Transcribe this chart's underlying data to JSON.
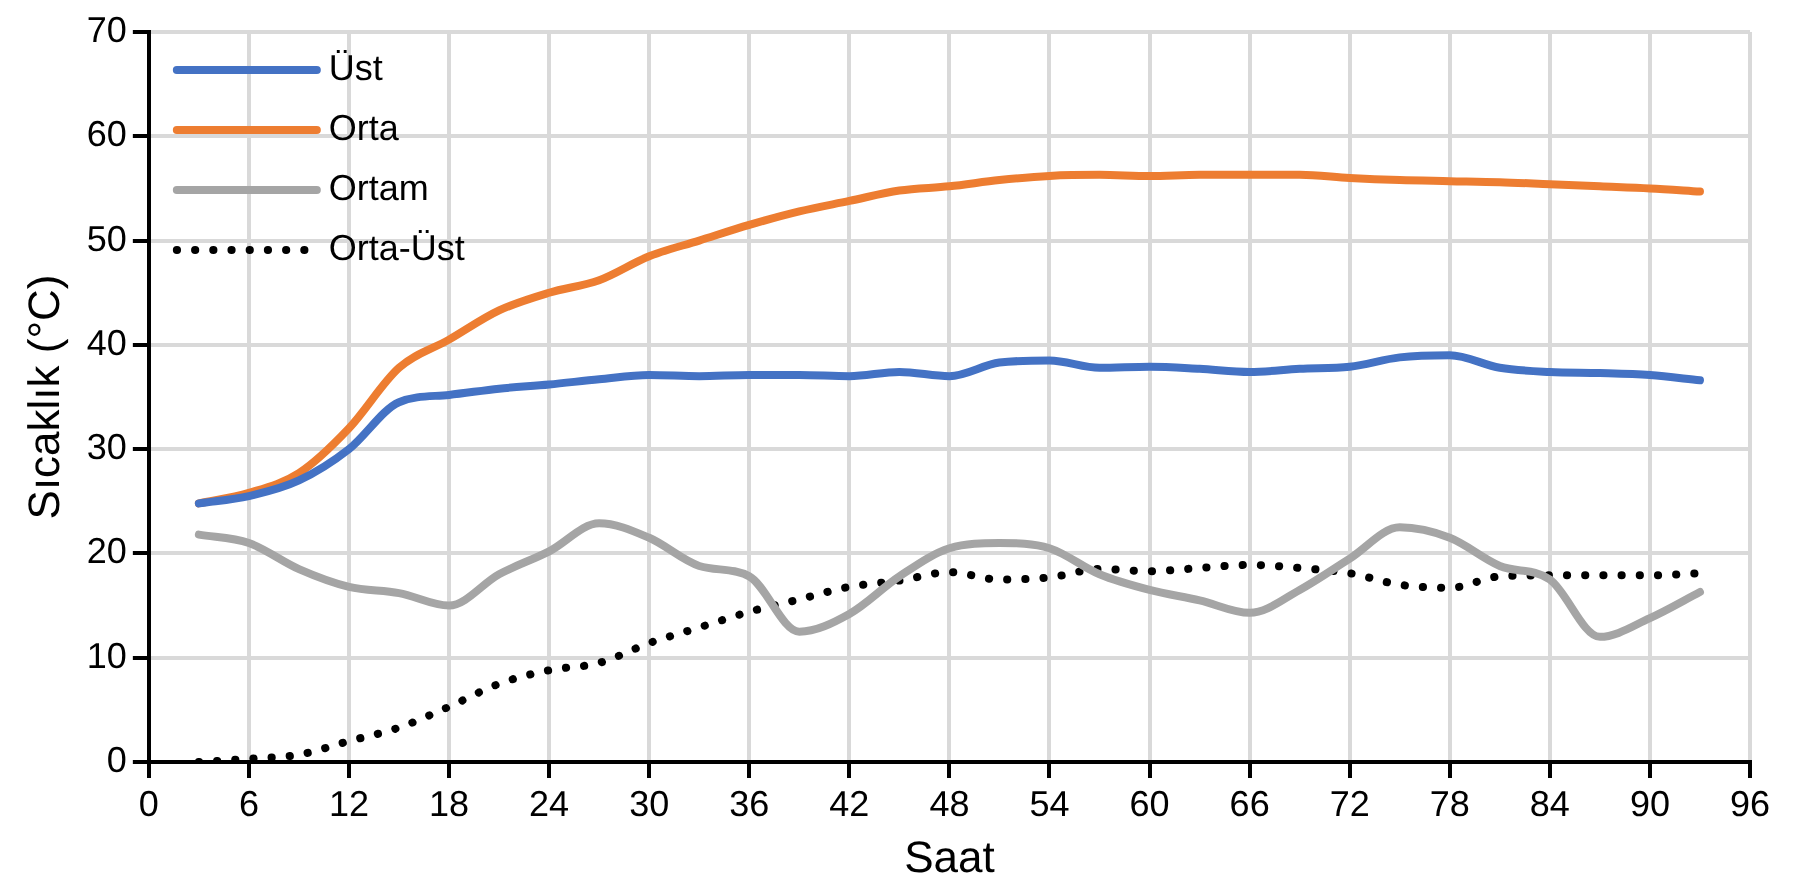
{
  "chart_data": {
    "type": "line",
    "xlabel": "Saat",
    "ylabel": "Sıcaklık (°C)",
    "x": [
      3,
      6,
      9,
      12,
      15,
      18,
      21,
      24,
      27,
      30,
      33,
      36,
      39,
      42,
      45,
      48,
      51,
      54,
      57,
      60,
      63,
      66,
      69,
      72,
      75,
      78,
      81,
      84,
      87,
      90,
      93
    ],
    "xlim": [
      0,
      96
    ],
    "xticks": [
      0,
      6,
      12,
      18,
      24,
      30,
      36,
      42,
      48,
      54,
      60,
      66,
      72,
      78,
      84,
      90,
      96
    ],
    "ylim": [
      0,
      70
    ],
    "yticks": [
      0,
      10,
      20,
      30,
      40,
      50,
      60,
      70
    ],
    "grid": true,
    "legend": "top left",
    "marker": "none",
    "series": [
      {
        "name": "Üst",
        "color": "#4472c4",
        "line_style": "solid",
        "values": [
          24.8,
          25.5,
          27,
          30,
          34.5,
          35.2,
          35.8,
          36.2,
          36.7,
          37.1,
          37,
          37.1,
          37.1,
          37,
          37.4,
          37,
          38.3,
          38.5,
          37.8,
          37.9,
          37.7,
          37.4,
          37.7,
          37.9,
          38.8,
          39,
          37.8,
          37.4,
          37.3,
          37.1,
          36.6
        ]
      },
      {
        "name": "Orta",
        "color": "#ed7d31",
        "line_style": "solid",
        "values": [
          24.8,
          25.8,
          27.7,
          32,
          37.8,
          40.5,
          43.3,
          45,
          46.2,
          48.5,
          50,
          51.5,
          52.8,
          53.8,
          54.8,
          55.2,
          55.8,
          56.2,
          56.3,
          56.2,
          56.3,
          56.3,
          56.3,
          56,
          55.8,
          55.7,
          55.6,
          55.4,
          55.2,
          55,
          54.7
        ]
      },
      {
        "name": "Ortam",
        "color": "#a5a5a5",
        "line_style": "solid",
        "values": [
          21.8,
          21,
          18.5,
          16.8,
          16.2,
          15,
          18,
          20.2,
          22.9,
          21.5,
          18.8,
          17.8,
          12.5,
          14.2,
          17.8,
          20.5,
          21,
          20.5,
          18,
          16.5,
          15.5,
          14.3,
          16.5,
          19.5,
          22.5,
          21.5,
          18.8,
          17.5,
          12,
          13.8,
          16.3
        ]
      },
      {
        "name": "Orta-Üst",
        "color": "#000000",
        "line_style": "dotted",
        "values": [
          0,
          0.3,
          0.7,
          2,
          3.3,
          5.3,
          7.5,
          8.8,
          9.5,
          11.4,
          12.9,
          14.4,
          15.6,
          16.8,
          17.4,
          18.2,
          17.5,
          17.7,
          18.5,
          18.3,
          18.6,
          18.9,
          18.6,
          18.1,
          17,
          16.7,
          17.8,
          17.9,
          17.9,
          17.9,
          18.1
        ]
      }
    ]
  }
}
